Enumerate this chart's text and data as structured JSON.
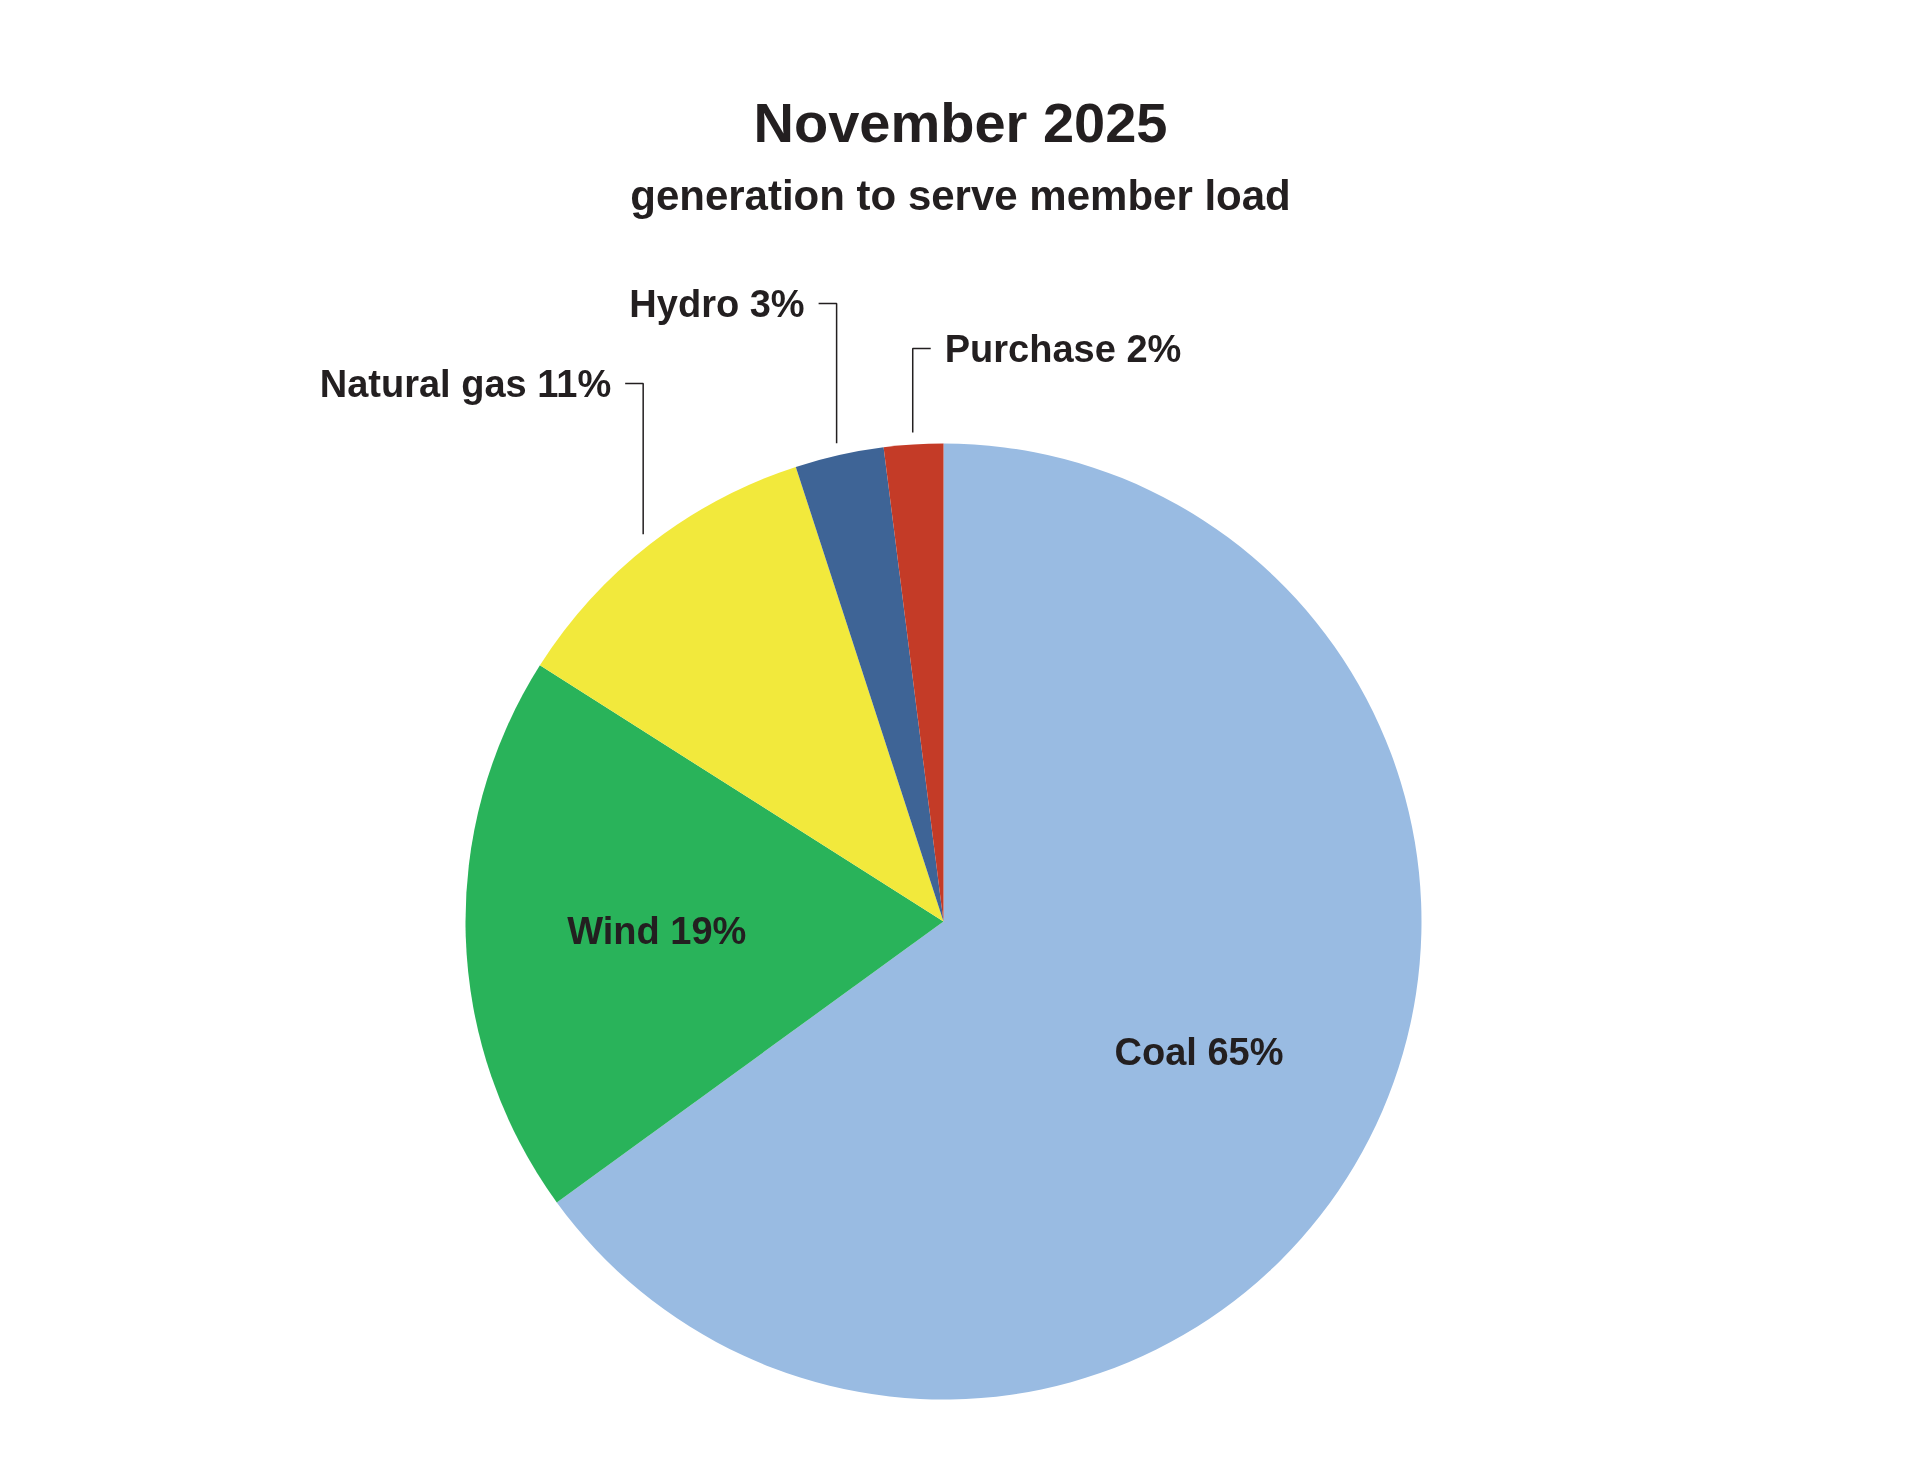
{
  "chart_data": {
    "type": "pie",
    "title": "November 2025",
    "subtitle": "generation to serve member load",
    "categories": [
      "Coal",
      "Wind",
      "Natural gas",
      "Hydro",
      "Purchase"
    ],
    "values": [
      65,
      19,
      11,
      3,
      2
    ],
    "value_labels": [
      "65%",
      "19%",
      "11%",
      "3%",
      "2%"
    ],
    "colors": [
      "#99bbe2",
      "#29b35a",
      "#f2e93c",
      "#3e6496",
      "#c43b27"
    ]
  }
}
